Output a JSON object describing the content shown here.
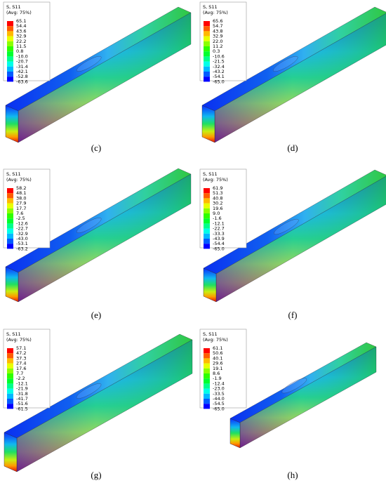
{
  "panels": [
    {
      "legend": {
        "title": "S, S11",
        "subtitle": "(Avg: 75%)",
        "values": [
          "65.1",
          "54.4",
          "43.6",
          "32.9",
          "22.2",
          "11.5",
          "0.8",
          "-10.0",
          "-20.7",
          "-31.4",
          "-42.1",
          "-52.8",
          "-63.6"
        ]
      },
      "caption": "(c)"
    },
    {
      "legend": {
        "title": "S, S11",
        "subtitle": "(Avg: 75%)",
        "values": [
          "65.6",
          "54.7",
          "43.8",
          "32.9",
          "22.0",
          "11.2",
          "0.3",
          "-10.6",
          "-21.5",
          "-32.4",
          "-43.2",
          "-54.1",
          "-65.0"
        ]
      },
      "caption": "(d)"
    },
    {
      "legend": {
        "title": "S, S11",
        "subtitle": "(Avg: 75%)",
        "values": [
          "58.2",
          "48.1",
          "38.0",
          "27.9",
          "17.7",
          "7.6",
          "-2.5",
          "-12.6",
          "-22.7",
          "-32.9",
          "-43.0",
          "-53.1",
          "-63.2"
        ]
      },
      "caption": "(e)"
    },
    {
      "legend": {
        "title": "S, S11",
        "subtitle": "(Avg: 75%)",
        "values": [
          "61.9",
          "51.3",
          "40.8",
          "30.2",
          "19.6",
          "9.0",
          "-1.6",
          "-12.1",
          "-22.7",
          "-33.3",
          "-43.9",
          "-54.4",
          "-65.0"
        ]
      },
      "caption": "(f)"
    },
    {
      "legend": {
        "title": "S, S11",
        "subtitle": "(Avg: 75%)",
        "values": [
          "57.1",
          "47.2",
          "37.3",
          "27.4",
          "17.6",
          "7.7",
          "-2.2",
          "-12.1",
          "-21.9",
          "-31.8",
          "-41.7",
          "-51.6",
          "-61.5"
        ]
      },
      "caption": "(g)"
    },
    {
      "legend": {
        "title": "S, S11",
        "subtitle": "(Avg: 75%)",
        "values": [
          "61.1",
          "50.6",
          "40.1",
          "29.6",
          "19.1",
          "8.6",
          "-1.9",
          "-12.4",
          "-23.0",
          "-33.5",
          "-44.0",
          "-54.5",
          "-65.0"
        ]
      },
      "caption": "(h)"
    }
  ]
}
